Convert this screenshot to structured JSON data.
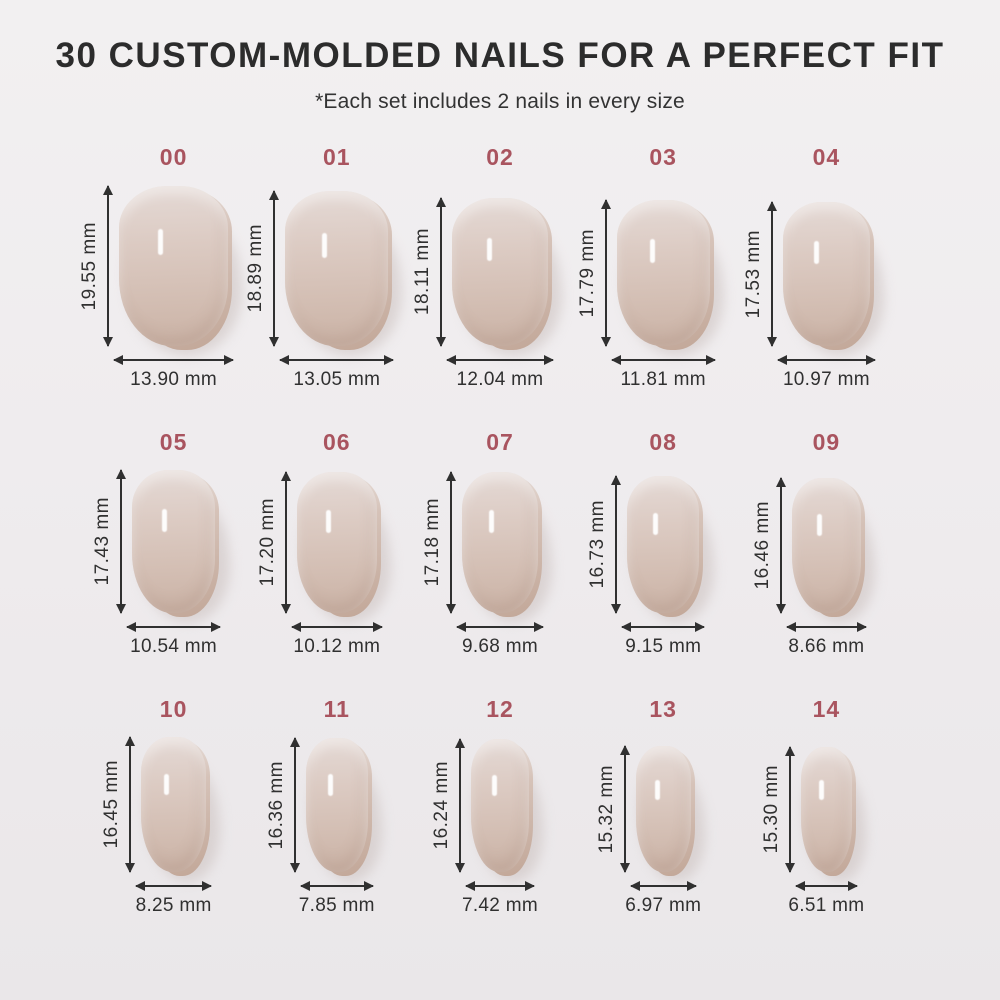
{
  "header": {
    "title": "30 CUSTOM-MOLDED NAILS FOR A PERFECT FIT",
    "subtitle": "*Each set includes 2 nails in every size"
  },
  "colors": {
    "background": "#efecee",
    "size_label_accent": "#a9545f",
    "title_text": "#2c2c2c",
    "dimension_text": "#303030",
    "nail_base": "#d6c3b9"
  },
  "nails": {
    "unit": "mm",
    "items": [
      {
        "size": "00",
        "height_label": "19.55 mm",
        "width_label": "13.90 mm"
      },
      {
        "size": "01",
        "height_label": "18.89 mm",
        "width_label": "13.05 mm"
      },
      {
        "size": "02",
        "height_label": "18.11 mm",
        "width_label": "12.04 mm"
      },
      {
        "size": "03",
        "height_label": "17.79 mm",
        "width_label": "11.81 mm"
      },
      {
        "size": "04",
        "height_label": "17.53 mm",
        "width_label": "10.97 mm"
      },
      {
        "size": "05",
        "height_label": "17.43 mm",
        "width_label": "10.54 mm"
      },
      {
        "size": "06",
        "height_label": "17.20 mm",
        "width_label": "10.12 mm"
      },
      {
        "size": "07",
        "height_label": "17.18 mm",
        "width_label": "9.68 mm"
      },
      {
        "size": "08",
        "height_label": "16.73 mm",
        "width_label": "9.15 mm"
      },
      {
        "size": "09",
        "height_label": "16.46 mm",
        "width_label": "8.66 mm"
      },
      {
        "size": "10",
        "height_label": "16.45 mm",
        "width_label": "8.25 mm"
      },
      {
        "size": "11",
        "height_label": "16.36 mm",
        "width_label": "7.85 mm"
      },
      {
        "size": "12",
        "height_label": "16.24 mm",
        "width_label": "7.42 mm"
      },
      {
        "size": "13",
        "height_label": "15.32 mm",
        "width_label": "6.97 mm"
      },
      {
        "size": "14",
        "height_label": "15.30 mm",
        "width_label": "6.51 mm"
      }
    ]
  }
}
